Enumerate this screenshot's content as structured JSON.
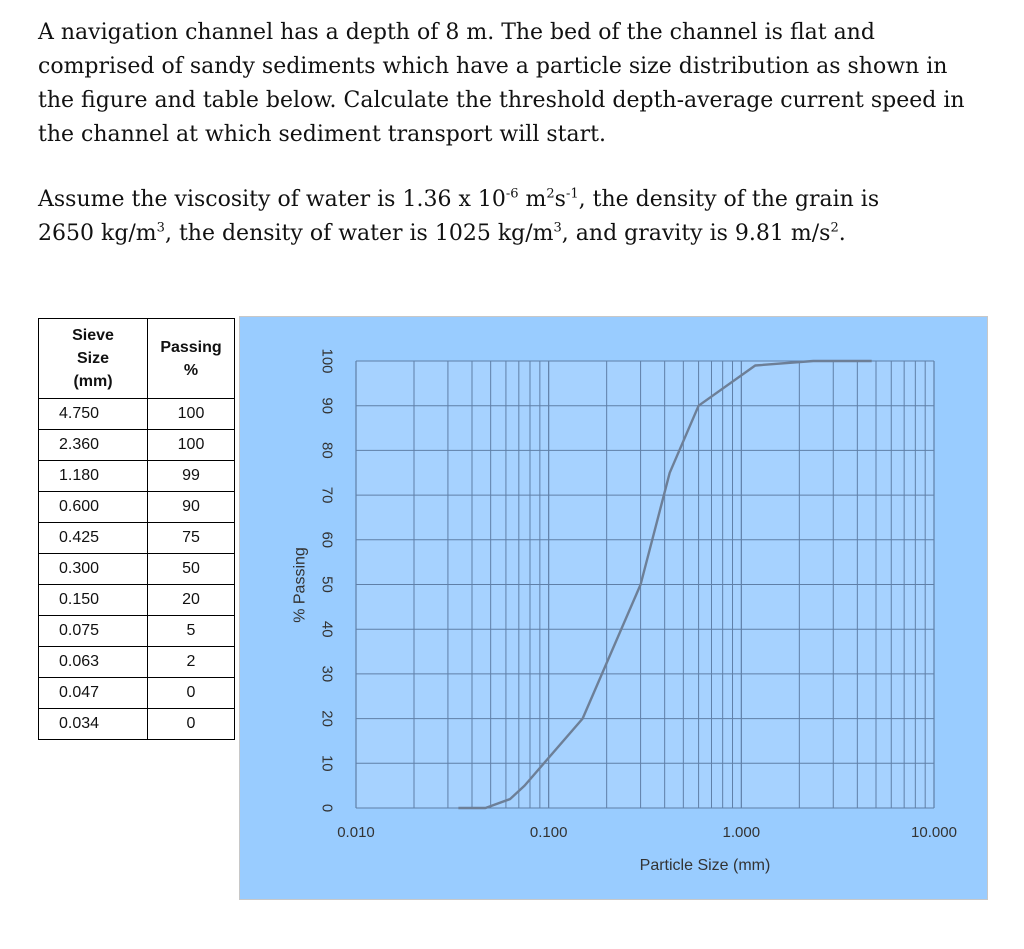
{
  "problem": {
    "paragraph1_lines": [
      "A navigation channel has a depth of 8 m. The bed of the channel is flat and",
      "comprised of sandy sediments which have a particle size distribution as shown in",
      "the figure and table below.  Calculate the threshold depth-average current speed in",
      "the channel at which sediment transport will start."
    ],
    "p2_a": "Assume the viscosity of water is 1.36 x 10",
    "p2_a_sup": "-6",
    "p2_b": " m",
    "p2_b_sup": "2",
    "p2_c": "s",
    "p2_c_sup": "-1",
    "p2_d": ", the density of the grain is",
    "p2_e": "2650 kg/m",
    "p2_e_sup": "3",
    "p2_f": ", the density of water is 1025 kg/m",
    "p2_f_sup": "3",
    "p2_g": ", and gravity is 9.81 m/s",
    "p2_g_sup": "2",
    "p2_h": "."
  },
  "table": {
    "header_col1_lines": [
      "Sieve",
      "Size",
      "(mm)"
    ],
    "header_col2_lines": [
      "Passing",
      "%"
    ],
    "rows": [
      {
        "size": "4.750",
        "passing": "100"
      },
      {
        "size": "2.360",
        "passing": "100"
      },
      {
        "size": "1.180",
        "passing": "99"
      },
      {
        "size": "0.600",
        "passing": "90"
      },
      {
        "size": "0.425",
        "passing": "75"
      },
      {
        "size": "0.300",
        "passing": "50"
      },
      {
        "size": "0.150",
        "passing": "20"
      },
      {
        "size": "0.075",
        "passing": "5"
      },
      {
        "size": "0.063",
        "passing": "2"
      },
      {
        "size": "0.047",
        "passing": "0"
      },
      {
        "size": "0.034",
        "passing": "0"
      }
    ]
  },
  "chart_data": {
    "type": "line",
    "xlabel": "Particle Size (mm)",
    "ylabel": "% Passing",
    "x_scale": "log",
    "xlim": [
      0.01,
      10
    ],
    "ylim": [
      0,
      100
    ],
    "x_ticks": [
      "0.010",
      "0.100",
      "1.000",
      "10.000"
    ],
    "y_ticks": [
      "0",
      "10",
      "20",
      "30",
      "40",
      "50",
      "60",
      "70",
      "80",
      "90",
      "100"
    ],
    "grid": true,
    "series": [
      {
        "x": [
          0.034,
          0.047,
          0.063,
          0.075,
          0.15,
          0.3,
          0.425,
          0.6,
          1.18,
          2.36,
          4.75
        ],
        "y": [
          0,
          0,
          2,
          5,
          20,
          50,
          75,
          90,
          99,
          100,
          100
        ]
      }
    ],
    "colors": {
      "background": "#99ccff",
      "plot_area": "#a6d2ff",
      "grid": "#5f7fa7",
      "line": "#6d7f97"
    }
  }
}
